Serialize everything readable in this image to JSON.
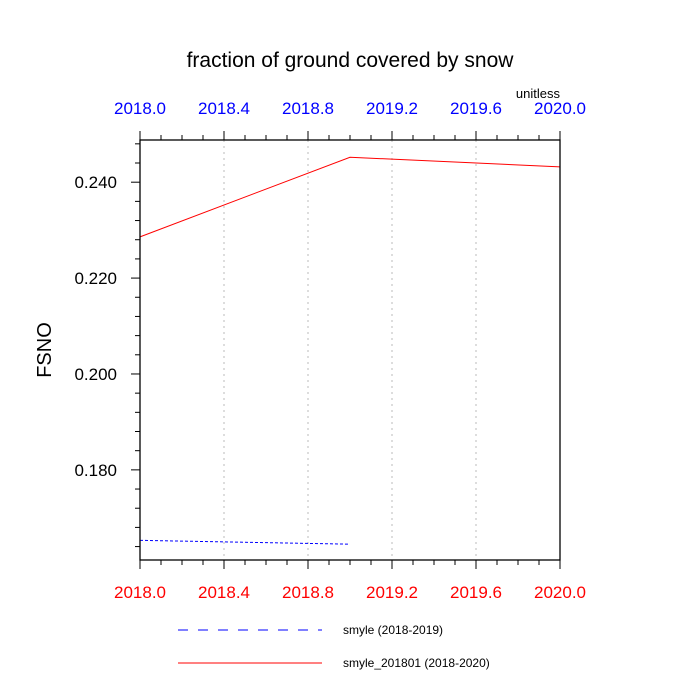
{
  "chart_data": {
    "type": "line",
    "title": "fraction of ground covered by snow",
    "units_label": "unitless",
    "xlabel": "",
    "ylabel": "FSNO",
    "xlim": [
      2018.0,
      2020.0
    ],
    "ylim": [
      0.1612,
      0.2488
    ],
    "x_ticks": [
      2018.0,
      2018.4,
      2018.8,
      2019.2,
      2019.6,
      2020.0
    ],
    "x_tick_labels": [
      "2018.0",
      "2018.4",
      "2018.8",
      "2019.2",
      "2019.6",
      "2020.0"
    ],
    "y_ticks": [
      0.18,
      0.2,
      0.22,
      0.24
    ],
    "y_tick_labels": [
      "0.180",
      "0.200",
      "0.220",
      "0.240"
    ],
    "grid": "vertical dotted",
    "legend_position": "bottom",
    "colors": {
      "top_axis_labels": "#0000ff",
      "bottom_axis_labels": "#ff0000"
    },
    "series": [
      {
        "name": "smyle (2018-2019)",
        "color": "#0000ff",
        "dash": "dashed",
        "x": [
          2018.0,
          2019.0
        ],
        "y": [
          0.1653,
          0.1645
        ]
      },
      {
        "name": "smyle_201801 (2018-2020)",
        "color": "#ff0000",
        "dash": "solid",
        "x": [
          2018.0,
          2019.0,
          2020.0
        ],
        "y": [
          0.2286,
          0.2452,
          0.2432
        ]
      }
    ]
  }
}
